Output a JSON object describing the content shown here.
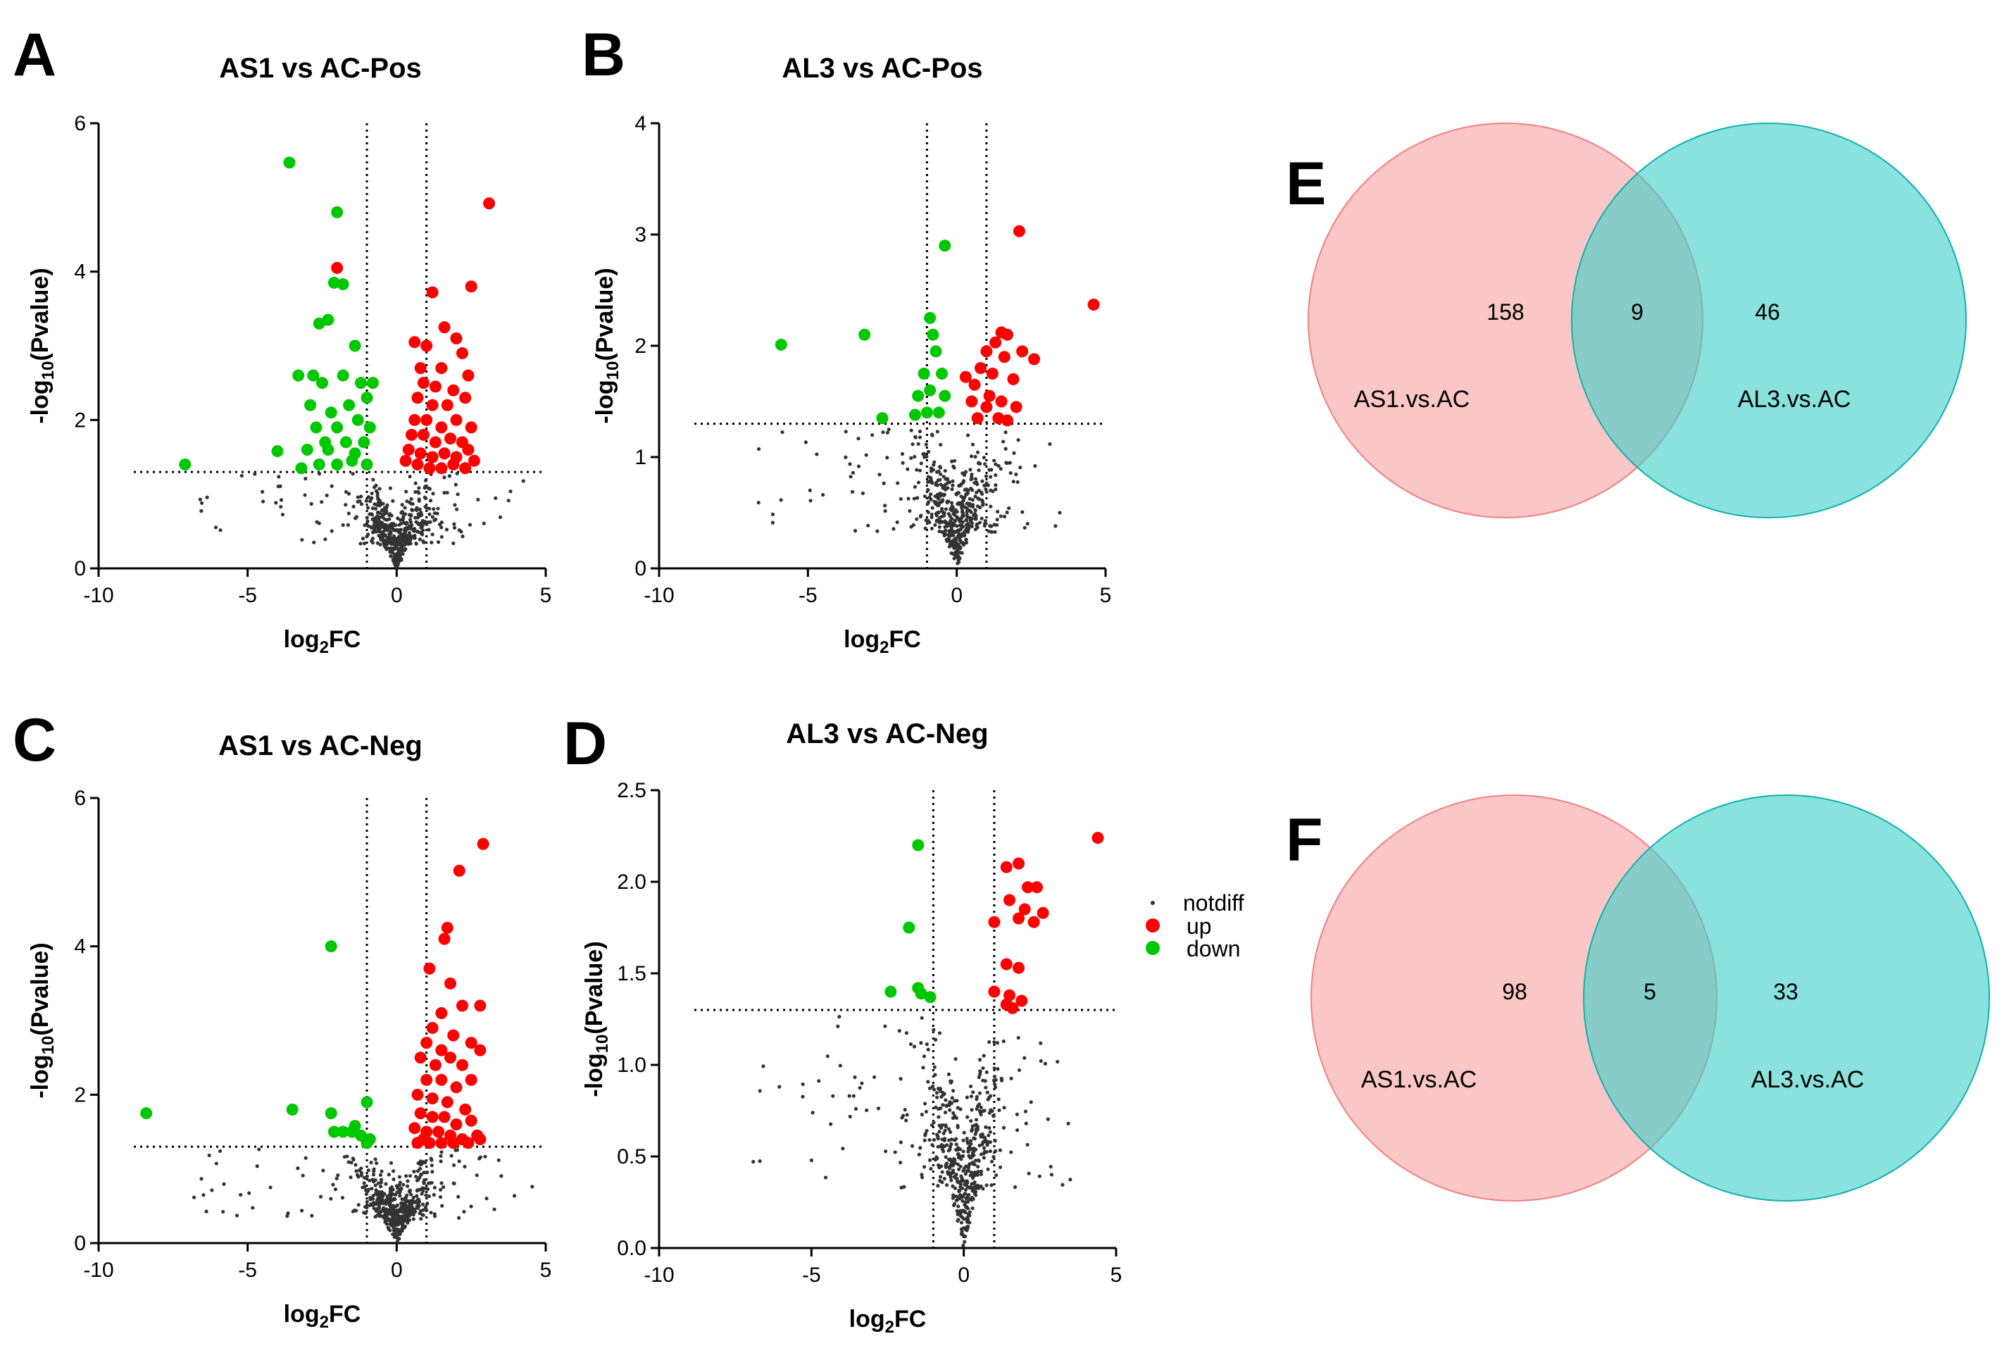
{
  "colors": {
    "up": "#ff0000",
    "down": "#00c800",
    "notdiff": "#333333",
    "venn_left_fill": "#f8a0a0",
    "venn_left_stroke": "#f08080",
    "venn_right_fill": "#40d0c8",
    "venn_right_stroke": "#10b0b0"
  },
  "legend": {
    "items": [
      {
        "key": "notdiff",
        "label": "notdiff"
      },
      {
        "key": "up",
        "label": "up"
      },
      {
        "key": "down",
        "label": "down"
      }
    ]
  },
  "chart_data": [
    {
      "id": "A",
      "panel_label": "A",
      "type": "scatter",
      "title": "AS1 vs AC-Pos",
      "xlabel": "log2FC",
      "ylabel": "-log10(Pvalue)",
      "xlim": [
        -10,
        5
      ],
      "ylim": [
        0,
        6
      ],
      "xticks": [
        "-10",
        "-5",
        "0",
        "5"
      ],
      "yticks": [
        "0",
        "2",
        "4",
        "6"
      ],
      "thresholds": {
        "fc": [
          -1,
          1
        ],
        "p": 1.3
      },
      "down": [
        [
          -7.1,
          1.4
        ],
        [
          -3.6,
          5.47
        ],
        [
          -2.0,
          4.8
        ],
        [
          -2.1,
          3.85
        ],
        [
          -1.8,
          3.83
        ],
        [
          -2.6,
          3.3
        ],
        [
          -2.3,
          3.35
        ],
        [
          -1.4,
          3.0
        ],
        [
          -3.3,
          2.6
        ],
        [
          -2.8,
          2.6
        ],
        [
          -2.5,
          2.5
        ],
        [
          -1.8,
          2.6
        ],
        [
          -1.2,
          2.5
        ],
        [
          -0.8,
          2.5
        ],
        [
          -2.9,
          2.2
        ],
        [
          -2.2,
          2.1
        ],
        [
          -1.6,
          2.2
        ],
        [
          -1.0,
          2.3
        ],
        [
          -2.7,
          1.9
        ],
        [
          -2.0,
          1.9
        ],
        [
          -1.3,
          2.0
        ],
        [
          -0.9,
          1.9
        ],
        [
          -3.0,
          1.6
        ],
        [
          -2.4,
          1.7
        ],
        [
          -1.7,
          1.7
        ],
        [
          -1.1,
          1.7
        ],
        [
          -4.0,
          1.58
        ],
        [
          -3.2,
          1.35
        ],
        [
          -2.6,
          1.4
        ],
        [
          -2.0,
          1.4
        ],
        [
          -1.5,
          1.45
        ],
        [
          -1.0,
          1.4
        ],
        [
          -2.3,
          1.6
        ],
        [
          -1.4,
          1.55
        ]
      ],
      "up": [
        [
          3.1,
          4.92
        ],
        [
          -2.0,
          4.05
        ],
        [
          1.2,
          3.72
        ],
        [
          2.5,
          3.8
        ],
        [
          1.6,
          3.25
        ],
        [
          2.0,
          3.1
        ],
        [
          0.6,
          3.05
        ],
        [
          1.0,
          3.0
        ],
        [
          2.2,
          2.9
        ],
        [
          0.8,
          2.7
        ],
        [
          1.5,
          2.7
        ],
        [
          2.4,
          2.6
        ],
        [
          0.9,
          2.5
        ],
        [
          1.3,
          2.45
        ],
        [
          1.9,
          2.4
        ],
        [
          0.7,
          2.3
        ],
        [
          1.2,
          2.2
        ],
        [
          1.7,
          2.2
        ],
        [
          2.3,
          2.3
        ],
        [
          0.6,
          2.0
        ],
        [
          1.0,
          2.0
        ],
        [
          1.5,
          1.9
        ],
        [
          2.0,
          2.0
        ],
        [
          2.5,
          1.9
        ],
        [
          0.5,
          1.8
        ],
        [
          0.9,
          1.8
        ],
        [
          1.3,
          1.7
        ],
        [
          1.8,
          1.75
        ],
        [
          2.2,
          1.7
        ],
        [
          0.4,
          1.6
        ],
        [
          0.8,
          1.55
        ],
        [
          1.2,
          1.5
        ],
        [
          1.6,
          1.55
        ],
        [
          2.0,
          1.5
        ],
        [
          2.4,
          1.6
        ],
        [
          0.3,
          1.45
        ],
        [
          0.7,
          1.4
        ],
        [
          1.1,
          1.35
        ],
        [
          1.5,
          1.35
        ],
        [
          1.9,
          1.4
        ],
        [
          2.3,
          1.35
        ],
        [
          2.6,
          1.45
        ]
      ],
      "notdiff_seed": 11,
      "notdiff_count": 520
    },
    {
      "id": "B",
      "panel_label": "B",
      "type": "scatter",
      "title": "AL3 vs AC-Pos",
      "xlabel": "log2FC",
      "ylabel": "-log10(Pvalue)",
      "xlim": [
        -10,
        5
      ],
      "ylim": [
        0,
        4
      ],
      "xticks": [
        "-10",
        "-5",
        "0",
        "5"
      ],
      "yticks": [
        "0",
        "1",
        "2",
        "3",
        "4"
      ],
      "thresholds": {
        "fc": [
          -1,
          1
        ],
        "p": 1.3
      },
      "down": [
        [
          -5.9,
          2.01
        ],
        [
          -3.1,
          2.1
        ],
        [
          -0.4,
          2.9
        ],
        [
          -0.9,
          2.25
        ],
        [
          -0.8,
          2.1
        ],
        [
          -0.7,
          1.95
        ],
        [
          -1.1,
          1.75
        ],
        [
          -0.9,
          1.6
        ],
        [
          -1.3,
          1.55
        ],
        [
          -0.5,
          1.75
        ],
        [
          -0.4,
          1.55
        ],
        [
          -2.5,
          1.35
        ],
        [
          -1.4,
          1.38
        ],
        [
          -1.0,
          1.4
        ],
        [
          -0.6,
          1.4
        ]
      ],
      "up": [
        [
          2.1,
          3.03
        ],
        [
          4.6,
          2.37
        ],
        [
          1.5,
          2.12
        ],
        [
          1.7,
          2.1
        ],
        [
          1.3,
          2.03
        ],
        [
          2.2,
          1.95
        ],
        [
          1.0,
          1.95
        ],
        [
          1.6,
          1.9
        ],
        [
          2.6,
          1.88
        ],
        [
          0.8,
          1.8
        ],
        [
          1.2,
          1.75
        ],
        [
          0.3,
          1.72
        ],
        [
          1.9,
          1.7
        ],
        [
          0.6,
          1.65
        ],
        [
          1.1,
          1.55
        ],
        [
          1.5,
          1.5
        ],
        [
          0.5,
          1.5
        ],
        [
          2.0,
          1.45
        ],
        [
          1.0,
          1.45
        ],
        [
          0.7,
          1.35
        ],
        [
          1.4,
          1.35
        ],
        [
          1.7,
          1.33
        ]
      ],
      "notdiff_seed": 23,
      "notdiff_count": 520
    },
    {
      "id": "C",
      "panel_label": "C",
      "type": "scatter",
      "title": "AS1 vs AC-Neg",
      "xlabel": "log2FC",
      "ylabel": "-log10(Pvalue)",
      "xlim": [
        -10,
        5
      ],
      "ylim": [
        0,
        6
      ],
      "xticks": [
        "-10",
        "-5",
        "0",
        "5"
      ],
      "yticks": [
        "0",
        "2",
        "4",
        "6"
      ],
      "thresholds": {
        "fc": [
          -1,
          1
        ],
        "p": 1.3
      },
      "down": [
        [
          -8.4,
          1.75
        ],
        [
          -3.5,
          1.8
        ],
        [
          -2.2,
          4.0
        ],
        [
          -2.2,
          1.75
        ],
        [
          -1.0,
          1.9
        ],
        [
          -2.1,
          1.5
        ],
        [
          -1.8,
          1.5
        ],
        [
          -1.5,
          1.5
        ],
        [
          -1.4,
          1.58
        ],
        [
          -0.9,
          1.4
        ],
        [
          -1.0,
          1.35
        ],
        [
          -1.2,
          1.45
        ]
      ],
      "up": [
        [
          2.9,
          5.38
        ],
        [
          2.1,
          5.02
        ],
        [
          1.7,
          4.25
        ],
        [
          1.6,
          4.1
        ],
        [
          1.1,
          3.7
        ],
        [
          1.8,
          3.5
        ],
        [
          1.5,
          3.1
        ],
        [
          2.2,
          3.2
        ],
        [
          2.8,
          3.2
        ],
        [
          1.2,
          2.9
        ],
        [
          1.9,
          2.8
        ],
        [
          1.0,
          2.7
        ],
        [
          1.5,
          2.6
        ],
        [
          2.5,
          2.7
        ],
        [
          0.8,
          2.5
        ],
        [
          1.3,
          2.4
        ],
        [
          1.8,
          2.5
        ],
        [
          2.2,
          2.4
        ],
        [
          2.8,
          2.6
        ],
        [
          1.0,
          2.2
        ],
        [
          1.5,
          2.2
        ],
        [
          2.0,
          2.1
        ],
        [
          2.5,
          2.2
        ],
        [
          0.7,
          2.0
        ],
        [
          1.2,
          1.95
        ],
        [
          1.7,
          1.9
        ],
        [
          2.3,
          1.8
        ],
        [
          0.8,
          1.75
        ],
        [
          1.2,
          1.7
        ],
        [
          1.6,
          1.7
        ],
        [
          2.0,
          1.6
        ],
        [
          2.5,
          1.65
        ],
        [
          0.6,
          1.55
        ],
        [
          1.0,
          1.5
        ],
        [
          1.4,
          1.5
        ],
        [
          1.8,
          1.45
        ],
        [
          2.2,
          1.4
        ],
        [
          2.7,
          1.45
        ],
        [
          0.7,
          1.35
        ],
        [
          1.1,
          1.35
        ],
        [
          1.5,
          1.35
        ],
        [
          1.9,
          1.35
        ],
        [
          2.4,
          1.35
        ],
        [
          2.8,
          1.4
        ],
        [
          0.9,
          1.4
        ]
      ],
      "notdiff_seed": 37,
      "notdiff_count": 520
    },
    {
      "id": "D",
      "panel_label": "D",
      "type": "scatter",
      "title": "AL3 vs AC-Neg",
      "xlabel": "log2FC",
      "ylabel": "-log10(Pvalue)",
      "xlim": [
        -10,
        5
      ],
      "ylim": [
        0,
        2.5
      ],
      "xticks": [
        "-10",
        "-5",
        "0",
        "5"
      ],
      "yticks": [
        "0.0",
        "0.5",
        "1.0",
        "1.5",
        "2.0",
        "2.5"
      ],
      "thresholds": {
        "fc": [
          -1,
          1
        ],
        "p": 1.3
      },
      "down": [
        [
          -1.5,
          2.2
        ],
        [
          -1.8,
          1.75
        ],
        [
          -2.4,
          1.4
        ],
        [
          -1.5,
          1.42
        ],
        [
          -1.4,
          1.39
        ],
        [
          -1.1,
          1.37
        ]
      ],
      "up": [
        [
          4.4,
          2.24
        ],
        [
          1.8,
          2.1
        ],
        [
          1.4,
          2.08
        ],
        [
          2.1,
          1.97
        ],
        [
          2.4,
          1.97
        ],
        [
          1.5,
          1.9
        ],
        [
          2.0,
          1.85
        ],
        [
          2.6,
          1.83
        ],
        [
          1.8,
          1.8
        ],
        [
          2.3,
          1.78
        ],
        [
          1.0,
          1.78
        ],
        [
          1.4,
          1.55
        ],
        [
          1.8,
          1.53
        ],
        [
          1.5,
          1.38
        ],
        [
          1.9,
          1.35
        ],
        [
          1.0,
          1.4
        ],
        [
          1.4,
          1.33
        ],
        [
          1.6,
          1.31
        ]
      ],
      "notdiff_seed": 53,
      "notdiff_count": 520
    }
  ],
  "venns": [
    {
      "id": "E",
      "panel_label": "E",
      "left_only": "158",
      "both": "9",
      "right_only": "46",
      "left_label": "AS1.vs.AC",
      "right_label": "AL3.vs.AC"
    },
    {
      "id": "F",
      "panel_label": "F",
      "left_only": "98",
      "both": "5",
      "right_only": "33",
      "left_label": "AS1.vs.AC",
      "right_label": "AL3.vs.AC"
    }
  ]
}
